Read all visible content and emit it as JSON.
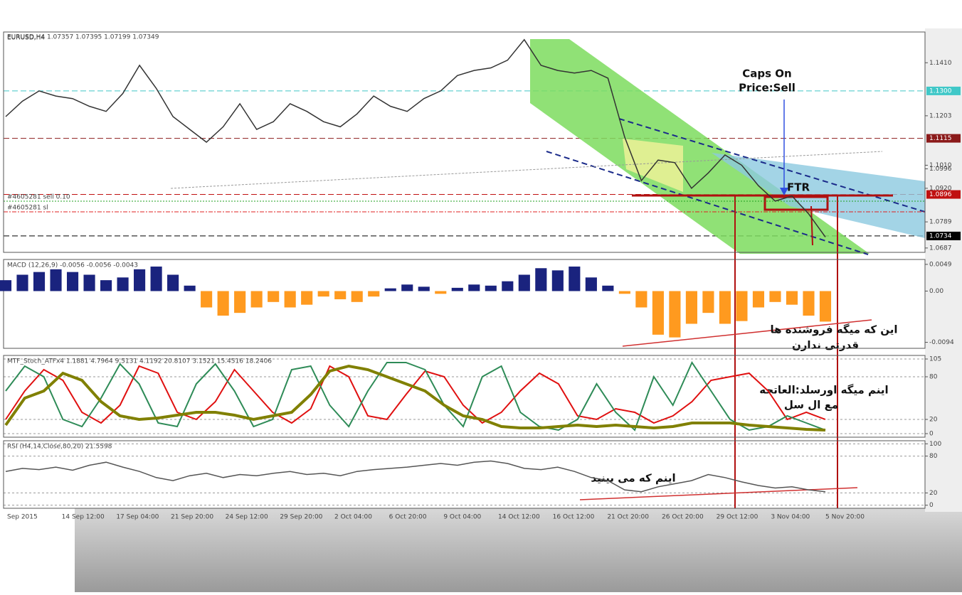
{
  "header": {
    "symbol": "EURUSD,H4 1.07357 1.07395 1.07199 1.07349"
  },
  "orders": [
    "#4605281 sell 0.10",
    "#4605281 sl"
  ],
  "annotations": {
    "caps": "Caps On",
    "price_sell": "Price:Sell",
    "ftr": "FTR",
    "sellers": "این که میگه فروشنده ها",
    "sellers2": "قدرتی ندارن",
    "oversold": "اینم میگه اورسلد:العاتحه",
    "oversold2": "مع ال سل",
    "rsi_note": "اینم که می بینید"
  },
  "x_labels": [
    "Sep 2015",
    "14 Sep 12:00",
    "17 Sep 04:00",
    "21 Sep 20:00",
    "24 Sep 12:00",
    "29 Sep 20:00",
    "2 Oct 04:00",
    "6 Oct 20:00",
    "9 Oct 04:00",
    "14 Oct 12:00",
    "16 Oct 12:00",
    "21 Oct 20:00",
    "26 Oct 20:00",
    "29 Oct 12:00",
    "3 Nov 04:00",
    "5 Nov 20:00"
  ],
  "chart_data": [
    {
      "type": "line",
      "title": "EURUSD,H4",
      "color": "#333333",
      "values": [
        1.12,
        1.126,
        1.13,
        1.128,
        1.127,
        1.124,
        1.122,
        1.129,
        1.14,
        1.131,
        1.12,
        1.115,
        1.11,
        1.116,
        1.125,
        1.115,
        1.118,
        1.125,
        1.122,
        1.118,
        1.116,
        1.121,
        1.128,
        1.124,
        1.122,
        1.127,
        1.13,
        1.136,
        1.138,
        1.139,
        1.142,
        1.15,
        1.14,
        1.138,
        1.137,
        1.138,
        1.135,
        1.112,
        1.095,
        1.103,
        1.102,
        1.092,
        1.098,
        1.105,
        1.101,
        1.093,
        1.087,
        1.089,
        1.082,
        1.073
      ],
      "ylim": [
        1.067,
        1.153
      ],
      "yticks": [
        {
          "value": 1.141,
          "label": "1.1410"
        },
        1.1203,
        {
          "value": 1.101,
          "label": "1.1010"
        },
        1.0996,
        {
          "value": 1.092,
          "label": "1.0920"
        },
        1.0789,
        1.0687
      ],
      "levels": [
        {
          "value": 1.13,
          "label": "1.1300",
          "color": "#40c8c8"
        },
        {
          "value": 1.1115,
          "label": "1.1115",
          "color": "#8b1a1a"
        },
        {
          "value": 1.0896,
          "label": "1.0896",
          "color": "#c01010"
        },
        {
          "value": 1.0734,
          "label": "1.0734",
          "color": "#000000"
        }
      ]
    },
    {
      "type": "bar",
      "title": "MACD (12,26,9) -0.0056 -0.0056 -0.0043",
      "positive_color": "#1a237e",
      "negative_color": "#ff9a1f",
      "values": [
        0.002,
        0.003,
        0.0035,
        0.004,
        0.0035,
        0.003,
        0.002,
        0.0025,
        0.004,
        0.0045,
        0.003,
        0.001,
        -0.003,
        -0.0045,
        -0.004,
        -0.003,
        -0.002,
        -0.003,
        -0.0025,
        -0.001,
        -0.0015,
        -0.002,
        -0.001,
        0.0005,
        0.0012,
        0.0008,
        -0.0005,
        0.0006,
        0.0012,
        0.001,
        0.0018,
        0.003,
        0.0042,
        0.0038,
        0.0045,
        0.0025,
        0.001,
        -0.0005,
        -0.003,
        -0.008,
        -0.0085,
        -0.006,
        -0.004,
        -0.006,
        -0.0055,
        -0.003,
        -0.002,
        -0.0025,
        -0.0045,
        -0.0056
      ],
      "ylim": [
        -0.0105,
        0.0058
      ],
      "yticks": [
        0.0049,
        {
          "value": 0,
          "label": "0.00"
        },
        -0.0094
      ]
    },
    {
      "type": "line",
      "title": "MTF_Stoch_ATFx4 1.1881 4.7964 9.5131 4.1192 20.8107 3.1521 15.4516 18.2406",
      "series": [
        {
          "color": "#e01010",
          "values": [
            20,
            60,
            90,
            75,
            30,
            15,
            40,
            95,
            85,
            30,
            20,
            45,
            90,
            60,
            30,
            15,
            35,
            95,
            80,
            25,
            20,
            55,
            88,
            80,
            40,
            15,
            30,
            60,
            85,
            70,
            25,
            20,
            35,
            30,
            15,
            25,
            45,
            75,
            80,
            85,
            60,
            20,
            30,
            20
          ]
        },
        {
          "color": "#2e8b57",
          "values": [
            60,
            95,
            80,
            20,
            10,
            50,
            98,
            70,
            15,
            10,
            70,
            98,
            60,
            10,
            20,
            90,
            95,
            40,
            10,
            60,
            100,
            100,
            90,
            40,
            10,
            80,
            95,
            30,
            10,
            5,
            20,
            70,
            30,
            5,
            80,
            40,
            100,
            60,
            20,
            5,
            10,
            25,
            15,
            5
          ]
        },
        {
          "color": "#808000",
          "values": [
            12,
            50,
            60,
            85,
            75,
            45,
            25,
            20,
            22,
            26,
            30,
            30,
            26,
            20,
            25,
            30,
            55,
            88,
            95,
            90,
            80,
            70,
            60,
            40,
            25,
            20,
            10,
            8,
            8,
            10,
            12,
            10,
            12,
            10,
            8,
            10,
            15,
            15,
            15,
            12,
            10,
            8,
            6,
            5
          ]
        }
      ],
      "ylim": [
        -5,
        110
      ],
      "yticks": [
        105,
        80,
        20,
        0
      ]
    },
    {
      "type": "line",
      "title": "RSI (H4,14,Close,80,20) 21.5598",
      "color": "#555555",
      "values": [
        55,
        60,
        58,
        62,
        57,
        65,
        70,
        62,
        55,
        45,
        40,
        48,
        52,
        45,
        50,
        48,
        52,
        55,
        50,
        52,
        48,
        55,
        58,
        60,
        62,
        65,
        68,
        65,
        70,
        72,
        68,
        60,
        58,
        62,
        55,
        45,
        40,
        25,
        22,
        30,
        35,
        40,
        50,
        45,
        38,
        32,
        28,
        30,
        25,
        22
      ],
      "ylim": [
        -5,
        105
      ],
      "yticks": [
        100,
        80,
        20,
        0
      ]
    }
  ]
}
